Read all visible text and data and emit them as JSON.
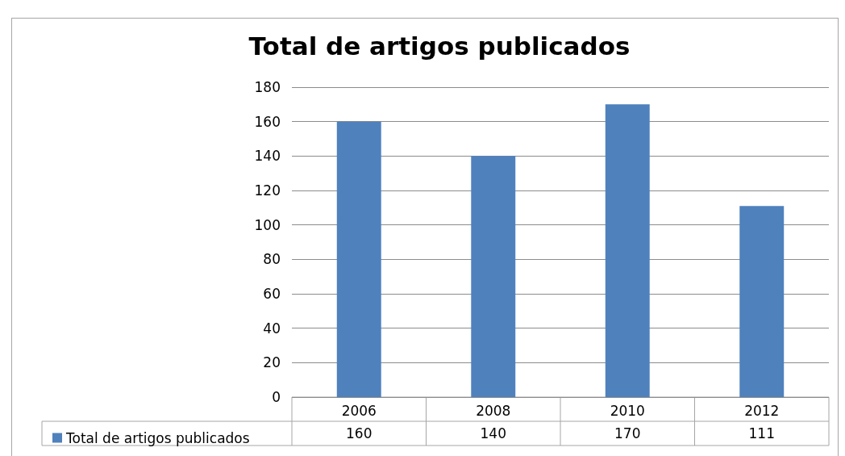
{
  "chart_data": {
    "type": "bar",
    "title": "Total de artigos publicados",
    "categories": [
      "2006",
      "2008",
      "2010",
      "2012"
    ],
    "series": [
      {
        "name": "Total de artigos publicados",
        "color": "#4f81bd",
        "values": [
          160,
          140,
          170,
          111
        ]
      }
    ],
    "ylim": [
      0,
      180
    ],
    "yticks": [
      0,
      20,
      40,
      60,
      80,
      100,
      120,
      140,
      160,
      180
    ],
    "grid": "y",
    "legend": "bottom",
    "data_labels": true
  }
}
